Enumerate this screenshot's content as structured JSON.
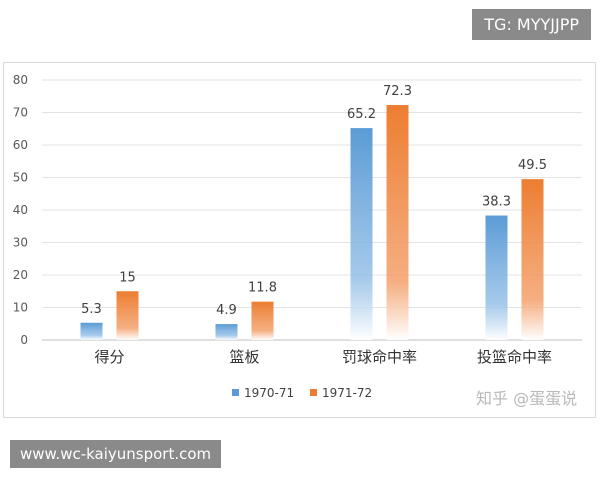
{
  "chart_data": {
    "type": "bar",
    "categories": [
      "得分",
      "篮板",
      "罚球命中率",
      "投篮命中率"
    ],
    "series": [
      {
        "name": "1970-71",
        "values": [
          5.3,
          4.9,
          65.2,
          38.3
        ],
        "color": "#5b9bd5"
      },
      {
        "name": "1971-72",
        "values": [
          15,
          11.8,
          72.3,
          49.5
        ],
        "color": "#ed7d31"
      }
    ],
    "ylim": [
      0,
      80
    ],
    "yticks": [
      0,
      10,
      20,
      30,
      40,
      50,
      60,
      70,
      80
    ],
    "grid": true,
    "legend": "bottom-center"
  },
  "watermarks": {
    "tg": "TG: MYYJJPP",
    "site": "www.wc-kaiyunsport.com",
    "zhihu": "知乎 @蛋蛋说"
  }
}
